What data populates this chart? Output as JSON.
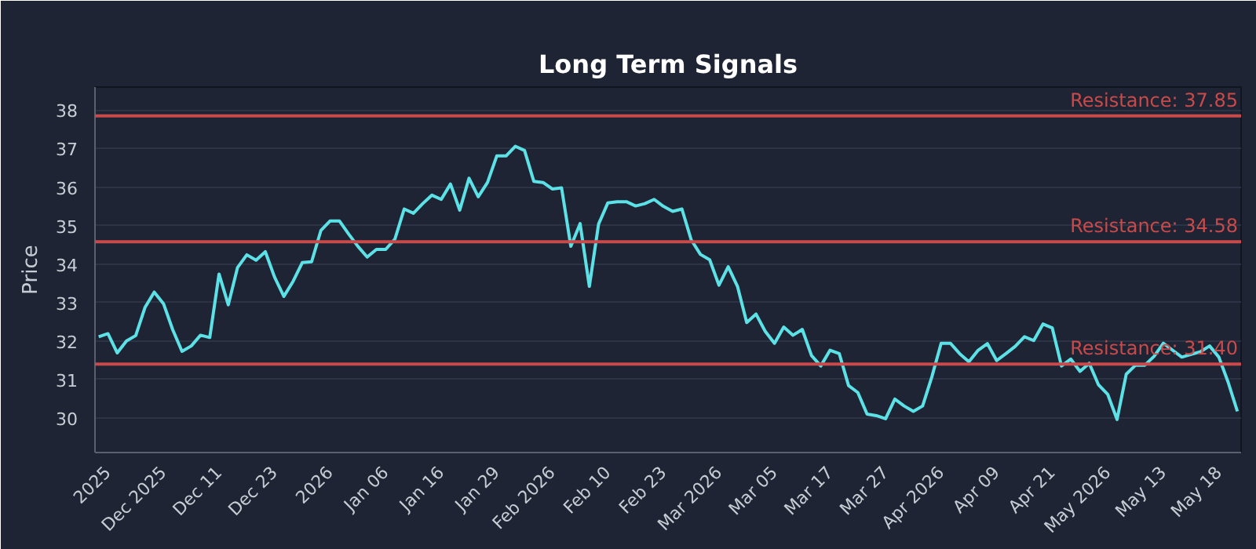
{
  "chart_data": {
    "type": "line",
    "title": "Long Term Signals",
    "ylabel": "Price",
    "categories": [
      null,
      "2025",
      null,
      null,
      null,
      null,
      null,
      "Dec 2025",
      null,
      null,
      null,
      null,
      null,
      "Dec 11",
      null,
      null,
      null,
      null,
      null,
      "Dec 23",
      null,
      null,
      null,
      null,
      null,
      "2026",
      null,
      null,
      null,
      null,
      null,
      "Jan 06",
      null,
      null,
      null,
      null,
      null,
      "Jan 16",
      null,
      null,
      null,
      null,
      null,
      "Jan 29",
      null,
      null,
      null,
      null,
      null,
      "Feb 2026",
      null,
      null,
      null,
      null,
      null,
      "Feb 10",
      null,
      null,
      null,
      null,
      null,
      "Feb 23",
      null,
      null,
      null,
      null,
      null,
      "Mar 2026",
      null,
      null,
      null,
      null,
      null,
      "Mar 05",
      null,
      null,
      null,
      null,
      null,
      "Mar 17",
      null,
      null,
      null,
      null,
      null,
      "Mar 27",
      null,
      null,
      null,
      null,
      null,
      "Apr 2026",
      null,
      null,
      null,
      null,
      null,
      "Apr 09",
      null,
      null,
      null,
      null,
      null,
      "Apr 21",
      null,
      null,
      null,
      null,
      null,
      "May 2026",
      null,
      null,
      null,
      null,
      null,
      "May 13",
      null,
      null,
      null,
      null,
      null,
      "May 18",
      null,
      null
    ],
    "series": [
      {
        "color": "#5ce1e6",
        "values": [
          32.11,
          32.19,
          31.69,
          32.0,
          32.14,
          32.87,
          33.27,
          32.97,
          32.29,
          31.73,
          31.87,
          32.15,
          32.09,
          33.74,
          32.94,
          33.91,
          34.24,
          34.1,
          34.32,
          33.66,
          33.16,
          33.55,
          34.04,
          34.06,
          34.87,
          35.12,
          35.12,
          34.78,
          34.46,
          34.18,
          34.38,
          34.38,
          34.65,
          35.43,
          35.32,
          35.57,
          35.79,
          35.68,
          36.08,
          35.4,
          36.23,
          35.75,
          36.12,
          36.81,
          36.81,
          37.06,
          36.95,
          36.15,
          36.12,
          35.95,
          35.98,
          34.46,
          35.05,
          33.42,
          35.04,
          35.59,
          35.62,
          35.62,
          35.51,
          35.57,
          35.68,
          35.5,
          35.37,
          35.43,
          34.63,
          34.25,
          34.11,
          33.45,
          33.93,
          33.42,
          32.48,
          32.7,
          32.25,
          31.94,
          32.36,
          32.15,
          32.3,
          31.62,
          31.35,
          31.76,
          31.67,
          30.84,
          30.66,
          30.1,
          30.06,
          29.98,
          30.49,
          30.31,
          30.17,
          30.31,
          31.07,
          31.94,
          31.94,
          31.67,
          31.46,
          31.76,
          31.93,
          31.49,
          31.67,
          31.86,
          32.11,
          32.01,
          32.44,
          32.34,
          31.35,
          31.53,
          31.21,
          31.42,
          30.86,
          30.61,
          29.96,
          31.14,
          31.37,
          31.37,
          31.6,
          31.94,
          31.76,
          31.58,
          31.65,
          31.72,
          31.87,
          31.58,
          30.93,
          30.17
        ]
      }
    ],
    "ylim": [
      29.1,
      38.6
    ],
    "yticks": [
      30,
      31,
      32,
      33,
      34,
      35,
      36,
      37,
      38
    ],
    "grid": "y",
    "marker": "none",
    "line_style": "solid",
    "ref_lines": [
      {
        "axis": "y",
        "value": 37.85,
        "label": "Resistance: 37.85",
        "color": "#c94a4a"
      },
      {
        "axis": "y",
        "value": 34.58,
        "label": "Resistance: 34.58",
        "color": "#c94a4a"
      },
      {
        "axis": "y",
        "value": 31.4,
        "label": "Resistance: 31.40",
        "color": "#c94a4a"
      }
    ]
  }
}
